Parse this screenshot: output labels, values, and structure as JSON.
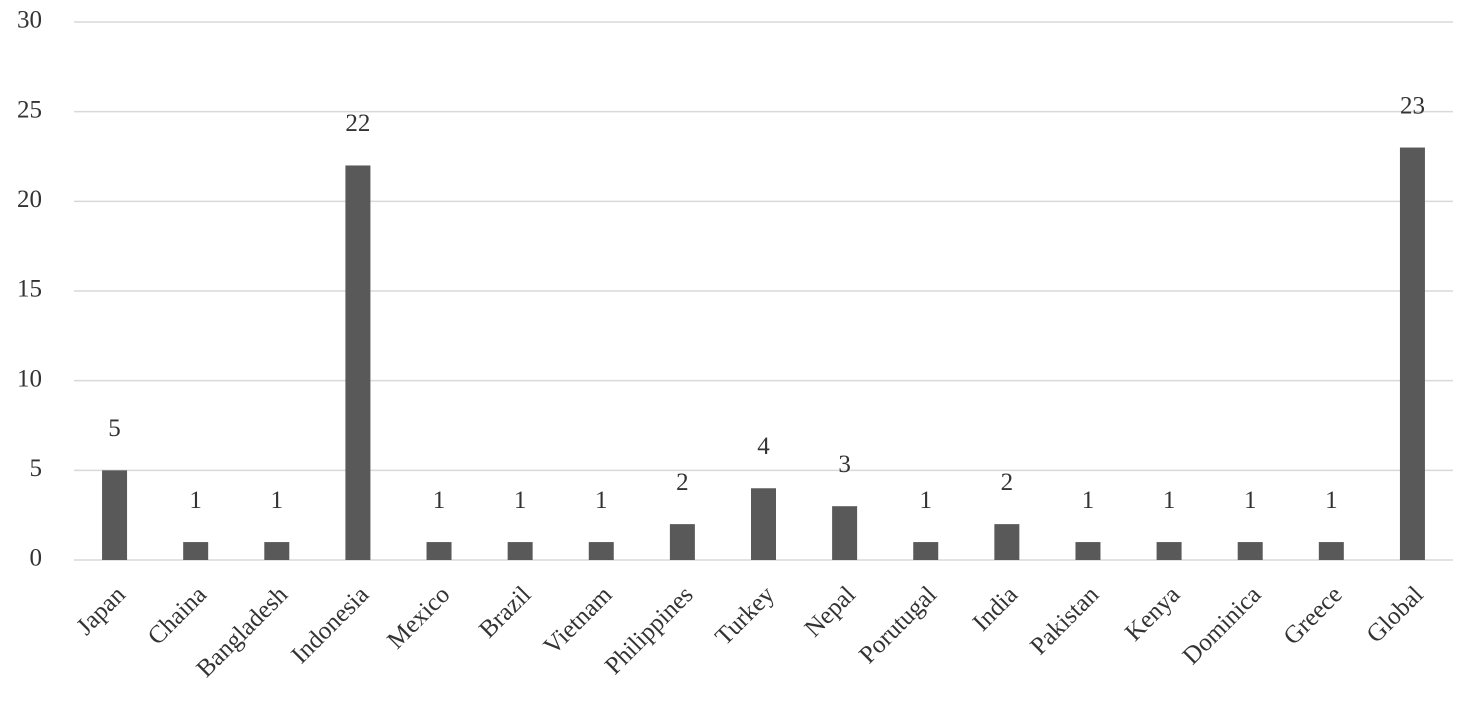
{
  "chart_data": {
    "type": "bar",
    "categories": [
      "Japan",
      "Chaina",
      "Bangladesh",
      "Indonesia",
      "Mexico",
      "Brazil",
      "Vietnam",
      "Philippines",
      "Turkey",
      "Nepal",
      "Porutugal",
      "India",
      "Pakistan",
      "Kenya",
      "Dominica",
      "Greece",
      "Global"
    ],
    "values": [
      5,
      1,
      1,
      22,
      1,
      1,
      1,
      2,
      4,
      3,
      1,
      2,
      1,
      1,
      1,
      1,
      23
    ],
    "color": "#595959",
    "ylim": [
      0,
      30
    ],
    "yticks": [
      0,
      5,
      10,
      15,
      20,
      25,
      30
    ],
    "grid": true
  }
}
